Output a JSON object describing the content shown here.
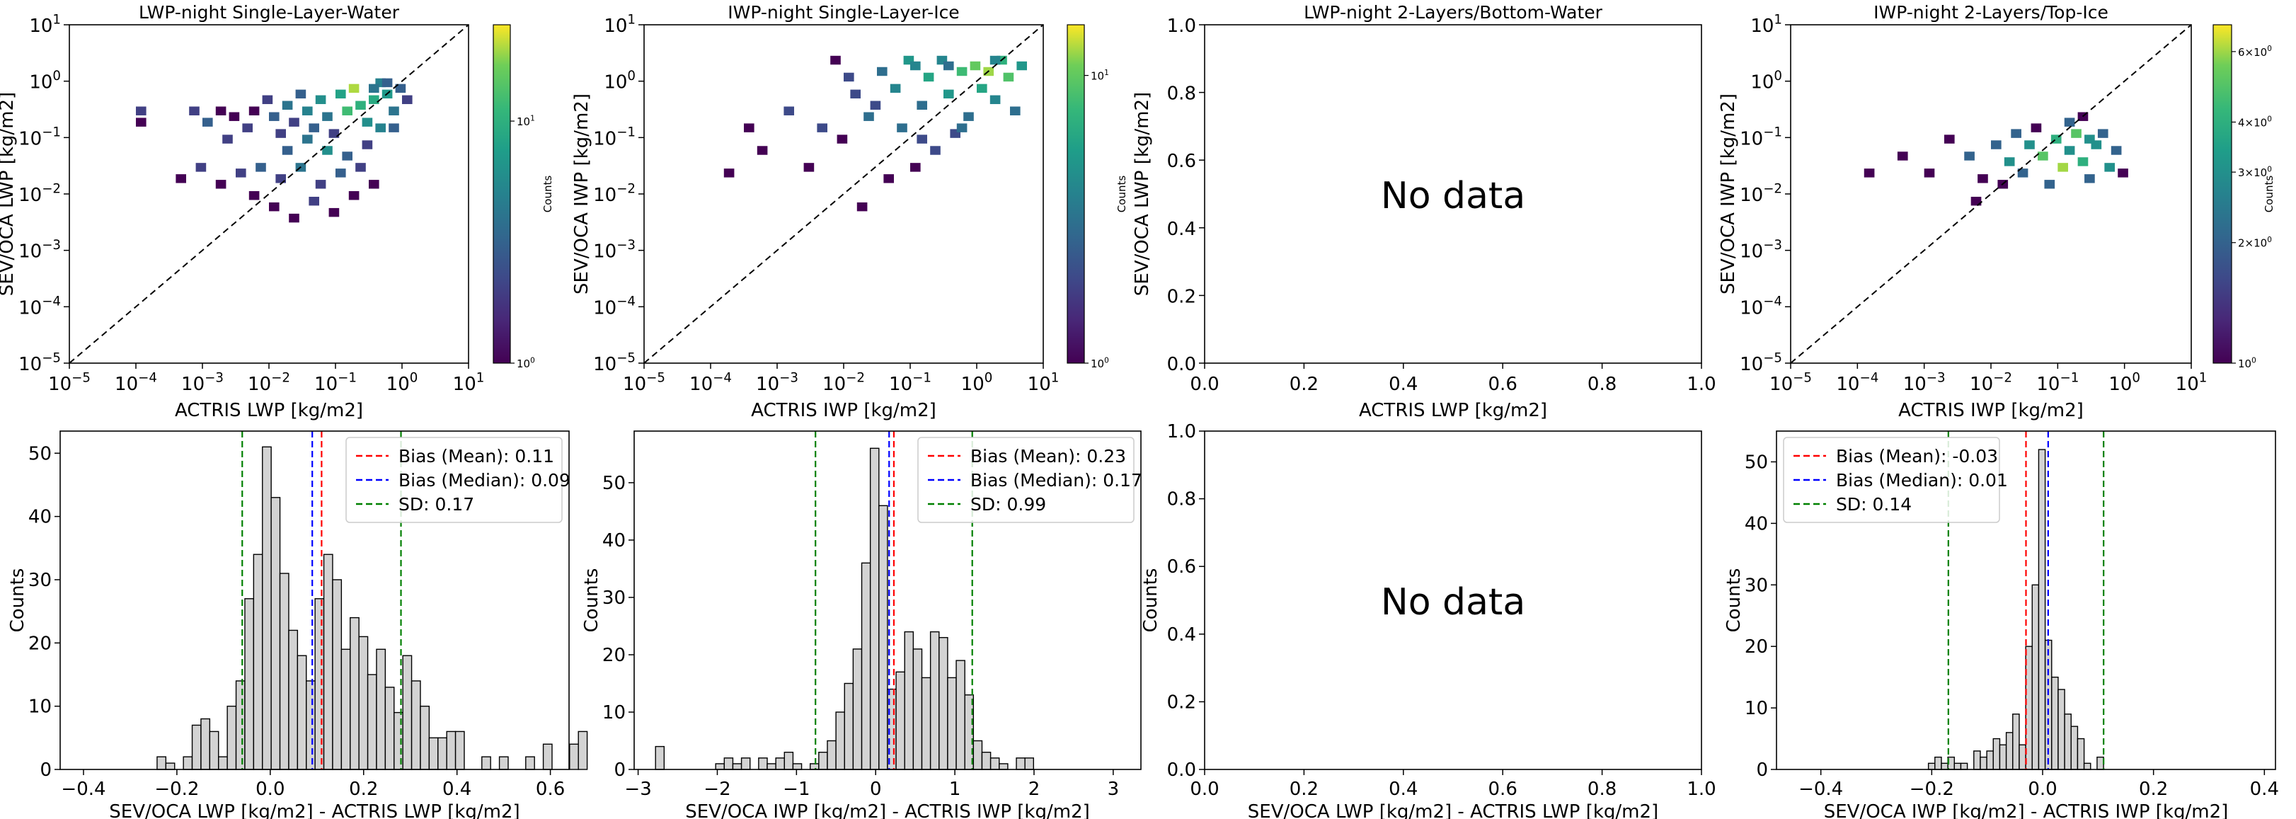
{
  "chart_data": [
    {
      "type": "heatmap",
      "title": "LWP-night Single-Layer-Water",
      "xlabel": "ACTRIS LWP [kg/m2]",
      "ylabel": "SEV/OCA LWP [kg/m2]",
      "xlim": [
        -5,
        1
      ],
      "ylim": [
        -5,
        1
      ],
      "scale": "log",
      "xticks": [
        "10",
        "10",
        "10",
        "10",
        "10",
        "10",
        "10"
      ],
      "xtick_exp": [
        "−5",
        "−4",
        "−3",
        "−2",
        "−1",
        "0",
        "1"
      ],
      "yticks": [
        "10",
        "10",
        "10",
        "10",
        "10",
        "10",
        "10"
      ],
      "ytick_exp": [
        "−5",
        "−4",
        "−3",
        "−2",
        "−1",
        "0",
        "1"
      ],
      "one_to_one_line": true,
      "colorbar": {
        "label": "Counts",
        "scale": "log",
        "ticks": [
          "10",
          "10"
        ],
        "tick_exp": [
          "0",
          "1"
        ],
        "min": 1,
        "max": 25
      },
      "cells": [
        [
          -4.0,
          -0.6,
          2
        ],
        [
          -4.0,
          -0.8,
          1
        ],
        [
          -3.2,
          -0.6,
          2
        ],
        [
          -3.0,
          -0.8,
          3
        ],
        [
          -2.8,
          -0.6,
          1
        ],
        [
          -2.7,
          -1.1,
          2
        ],
        [
          -2.6,
          -0.7,
          1
        ],
        [
          -2.4,
          -0.9,
          2
        ],
        [
          -2.3,
          -0.6,
          1
        ],
        [
          -2.1,
          -0.4,
          2
        ],
        [
          -2.0,
          -0.7,
          3
        ],
        [
          -1.9,
          -1.0,
          2
        ],
        [
          -1.8,
          -0.5,
          4
        ],
        [
          -1.7,
          -0.8,
          2
        ],
        [
          -1.6,
          -0.3,
          3
        ],
        [
          -1.5,
          -0.6,
          5
        ],
        [
          -1.4,
          -0.9,
          3
        ],
        [
          -1.3,
          -0.4,
          6
        ],
        [
          -1.2,
          -0.7,
          4
        ],
        [
          -1.1,
          -1.0,
          2
        ],
        [
          -1.0,
          -0.3,
          8
        ],
        [
          -0.9,
          -0.6,
          12
        ],
        [
          -0.8,
          -0.2,
          20
        ],
        [
          -0.7,
          -0.5,
          10
        ],
        [
          -0.6,
          -0.8,
          6
        ],
        [
          -0.5,
          -0.4,
          9
        ],
        [
          -0.4,
          -0.1,
          5
        ],
        [
          -0.3,
          -0.3,
          7
        ],
        [
          -0.2,
          -0.6,
          4
        ],
        [
          -0.1,
          -0.2,
          3
        ],
        [
          0.0,
          -0.4,
          2
        ],
        [
          -0.3,
          -0.1,
          3
        ],
        [
          -0.5,
          -0.2,
          4
        ],
        [
          -3.4,
          -1.8,
          1
        ],
        [
          -3.1,
          -1.6,
          2
        ],
        [
          -2.8,
          -1.9,
          1
        ],
        [
          -2.5,
          -1.7,
          2
        ],
        [
          -2.2,
          -1.6,
          3
        ],
        [
          -1.9,
          -1.8,
          2
        ],
        [
          -1.6,
          -1.6,
          4
        ],
        [
          -1.3,
          -1.9,
          2
        ],
        [
          -1.0,
          -1.7,
          3
        ],
        [
          -0.7,
          -1.6,
          2
        ],
        [
          -0.5,
          -1.9,
          1
        ],
        [
          -0.9,
          -1.4,
          3
        ],
        [
          -2.0,
          -2.3,
          1
        ],
        [
          -1.7,
          -2.5,
          1
        ],
        [
          -1.4,
          -2.2,
          2
        ],
        [
          -1.1,
          -2.4,
          1
        ],
        [
          -2.3,
          -2.1,
          1
        ],
        [
          -0.8,
          -2.1,
          1
        ],
        [
          -1.8,
          -1.3,
          3
        ],
        [
          -1.5,
          -1.1,
          4
        ],
        [
          -1.2,
          -1.3,
          6
        ],
        [
          -0.6,
          -1.2,
          2
        ],
        [
          -0.4,
          -0.9,
          5
        ],
        [
          -0.2,
          -0.9,
          3
        ]
      ]
    },
    {
      "type": "heatmap",
      "title": "IWP-night Single-Layer-Ice",
      "xlabel": "ACTRIS IWP [kg/m2]",
      "ylabel": "SEV/OCA IWP [kg/m2]",
      "xlim": [
        -5,
        1
      ],
      "ylim": [
        -5,
        1
      ],
      "scale": "log",
      "xticks": [
        "10",
        "10",
        "10",
        "10",
        "10",
        "10",
        "10"
      ],
      "xtick_exp": [
        "−5",
        "−4",
        "−3",
        "−2",
        "−1",
        "0",
        "1"
      ],
      "yticks": [
        "10",
        "10",
        "10",
        "10",
        "10",
        "10",
        "10"
      ],
      "ytick_exp": [
        "−5",
        "−4",
        "−3",
        "−2",
        "−1",
        "0",
        "1"
      ],
      "one_to_one_line": true,
      "colorbar": {
        "label": "Counts",
        "scale": "log",
        "ticks": [
          "10",
          "10"
        ],
        "tick_exp": [
          "0",
          "1"
        ],
        "min": 1,
        "max": 15
      },
      "cells": [
        [
          -3.8,
          -1.7,
          1
        ],
        [
          -3.5,
          -0.9,
          1
        ],
        [
          -3.3,
          -1.3,
          1
        ],
        [
          -2.9,
          -0.6,
          2
        ],
        [
          -2.6,
          -1.6,
          1
        ],
        [
          -2.4,
          -0.9,
          2
        ],
        [
          -2.1,
          -1.1,
          1
        ],
        [
          -1.9,
          -0.3,
          2
        ],
        [
          -1.7,
          -0.7,
          3
        ],
        [
          -1.5,
          0.1,
          3
        ],
        [
          -1.3,
          -0.2,
          4
        ],
        [
          -1.1,
          0.3,
          5
        ],
        [
          -0.9,
          -0.5,
          3
        ],
        [
          -0.8,
          0.0,
          6
        ],
        [
          -0.6,
          0.3,
          4
        ],
        [
          -0.5,
          -0.3,
          5
        ],
        [
          -0.3,
          0.1,
          8
        ],
        [
          -0.2,
          -0.7,
          3
        ],
        [
          -0.1,
          0.2,
          10
        ],
        [
          0.0,
          -0.2,
          6
        ],
        [
          0.1,
          0.1,
          12
        ],
        [
          0.2,
          -0.4,
          4
        ],
        [
          0.3,
          0.3,
          7
        ],
        [
          0.4,
          0.0,
          9
        ],
        [
          -0.4,
          -1.0,
          2
        ],
        [
          -0.7,
          -1.3,
          2
        ],
        [
          -1.0,
          -1.6,
          1
        ],
        [
          -1.4,
          -1.8,
          1
        ],
        [
          -1.8,
          -2.3,
          1
        ],
        [
          -1.2,
          -0.9,
          3
        ],
        [
          -1.6,
          -0.5,
          2
        ],
        [
          0.5,
          -0.6,
          3
        ],
        [
          0.6,
          0.2,
          5
        ],
        [
          0.2,
          0.3,
          4
        ],
        [
          -0.5,
          0.2,
          3
        ],
        [
          -1.0,
          0.2,
          4
        ],
        [
          -2.2,
          0.3,
          1
        ],
        [
          -2.0,
          0.0,
          2
        ],
        [
          -0.9,
          -1.1,
          2
        ],
        [
          -0.3,
          -0.9,
          3
        ]
      ]
    },
    {
      "type": "heatmap",
      "title": "LWP-night 2-Layers/Bottom-Water",
      "xlabel": "ACTRIS LWP [kg/m2]",
      "ylabel": "SEV/OCA LWP [kg/m2]",
      "xlim": [
        0.0,
        1.0
      ],
      "ylim": [
        0.0,
        1.0
      ],
      "xticks": [
        "0.0",
        "0.2",
        "0.4",
        "0.6",
        "0.8",
        "1.0"
      ],
      "yticks": [
        "0.0",
        "0.2",
        "0.4",
        "0.6",
        "0.8",
        "1.0"
      ],
      "annotation": "No data"
    },
    {
      "type": "heatmap",
      "title": "IWP-night 2-Layers/Top-Ice",
      "xlabel": "ACTRIS IWP [kg/m2]",
      "ylabel": "SEV/OCA IWP [kg/m2]",
      "xlim": [
        -5,
        1
      ],
      "ylim": [
        -5,
        1
      ],
      "scale": "log",
      "xticks": [
        "10",
        "10",
        "10",
        "10",
        "10",
        "10",
        "10"
      ],
      "xtick_exp": [
        "−5",
        "−4",
        "−3",
        "−2",
        "−1",
        "0",
        "1"
      ],
      "yticks": [
        "10",
        "10",
        "10",
        "10",
        "10",
        "10",
        "10"
      ],
      "ytick_exp": [
        "−5",
        "−4",
        "−3",
        "−2",
        "−1",
        "0",
        "1"
      ],
      "one_to_one_line": true,
      "colorbar": {
        "label": "Counts",
        "scale": "log",
        "ticks": [
          "10",
          "2×10",
          "3×10",
          "4×10",
          "6×10"
        ],
        "tick_exp": [
          "0",
          "0",
          "0",
          "0",
          "0"
        ],
        "tick_values": [
          1,
          2,
          3,
          4,
          6
        ],
        "min": 1,
        "max": 7
      },
      "cells": [
        [
          -3.9,
          -1.7,
          1
        ],
        [
          -3.4,
          -1.4,
          1
        ],
        [
          -3.0,
          -1.7,
          1
        ],
        [
          -2.7,
          -1.1,
          1
        ],
        [
          -2.4,
          -1.4,
          2
        ],
        [
          -2.2,
          -1.8,
          1
        ],
        [
          -2.0,
          -1.2,
          2
        ],
        [
          -1.8,
          -1.5,
          3
        ],
        [
          -1.6,
          -1.7,
          2
        ],
        [
          -1.5,
          -1.2,
          3
        ],
        [
          -1.3,
          -1.4,
          5
        ],
        [
          -1.2,
          -1.9,
          2
        ],
        [
          -1.1,
          -1.1,
          4
        ],
        [
          -1.0,
          -1.6,
          6
        ],
        [
          -0.9,
          -1.3,
          3
        ],
        [
          -0.8,
          -1.0,
          5
        ],
        [
          -0.7,
          -1.5,
          4
        ],
        [
          -0.6,
          -1.8,
          2
        ],
        [
          -0.5,
          -1.2,
          3
        ],
        [
          -0.4,
          -1.0,
          2
        ],
        [
          -0.3,
          -1.6,
          3
        ],
        [
          -0.2,
          -1.3,
          2
        ],
        [
          -0.1,
          -1.7,
          1
        ],
        [
          -2.3,
          -2.2,
          1
        ],
        [
          -1.7,
          -1.0,
          2
        ],
        [
          -1.4,
          -0.9,
          1
        ],
        [
          -0.9,
          -0.8,
          2
        ],
        [
          -0.7,
          -0.7,
          1
        ],
        [
          -0.6,
          -1.1,
          3
        ],
        [
          -1.9,
          -1.9,
          1
        ]
      ]
    },
    {
      "type": "bar",
      "xlabel": "SEV/OCA LWP [kg/m2] - ACTRIS LWP [kg/m2]",
      "ylabel": "Counts",
      "xlim": [
        -0.45,
        0.64
      ],
      "ylim": [
        0,
        53.5
      ],
      "xticks": [
        "−0.4",
        "−0.2",
        "0.0",
        "0.2",
        "0.4",
        "0.6"
      ],
      "xtick_values": [
        -0.4,
        -0.2,
        0.0,
        0.2,
        0.4,
        0.6
      ],
      "yticks": [
        "0",
        "10",
        "20",
        "30",
        "40",
        "50"
      ],
      "ytick_values": [
        0,
        10,
        20,
        30,
        40,
        50
      ],
      "bin_start": -0.28,
      "bin_width": 0.0188,
      "values": [
        0,
        0,
        2,
        1,
        0,
        2,
        7,
        8,
        6,
        2,
        10,
        14,
        27,
        34,
        51,
        43,
        31,
        22,
        18,
        14,
        27,
        34,
        30,
        19,
        24,
        21,
        15,
        19,
        13,
        9,
        18,
        14,
        10,
        5,
        5,
        6,
        6,
        0,
        0,
        2,
        0,
        2,
        0,
        0,
        2,
        0,
        4,
        0,
        0,
        4,
        6
      ],
      "lines": [
        {
          "label": "Bias (Mean): 0.11",
          "value": 0.11,
          "color": "#ff0000"
        },
        {
          "label": "Bias (Median): 0.09",
          "value": 0.09,
          "color": "#0000ff"
        },
        {
          "label": "SD: 0.17",
          "value": -0.06,
          "color": "#008000"
        },
        {
          "value": 0.28,
          "color": "#008000"
        }
      ],
      "legend": "top-right"
    },
    {
      "type": "bar",
      "xlabel": "SEV/OCA IWP [kg/m2] - ACTRIS IWP [kg/m2]",
      "ylabel": "Counts",
      "xlim": [
        -3.05,
        3.35
      ],
      "ylim": [
        0,
        59
      ],
      "xticks": [
        "−3",
        "−2",
        "−1",
        "0",
        "1",
        "2",
        "3"
      ],
      "xtick_values": [
        -3,
        -2,
        -1,
        0,
        1,
        2,
        3
      ],
      "yticks": [
        "0",
        "10",
        "20",
        "30",
        "40",
        "50"
      ],
      "ytick_values": [
        0,
        10,
        20,
        30,
        40,
        50
      ],
      "bin_start": -2.78,
      "bin_width": 0.1085,
      "values": [
        4,
        0,
        0,
        0,
        0,
        0,
        0,
        1,
        2,
        1,
        2,
        0,
        2,
        1,
        2,
        3,
        1,
        0,
        1,
        3,
        5,
        10,
        15,
        21,
        36,
        56,
        46,
        14,
        17,
        24,
        21,
        16,
        24,
        23,
        16,
        19,
        13,
        5,
        3,
        2,
        1,
        0,
        2,
        2,
        0,
        0,
        0,
        0,
        0,
        0,
        0
      ],
      "lines": [
        {
          "label": "Bias (Mean): 0.23",
          "value": 0.23,
          "color": "#ff0000"
        },
        {
          "label": "Bias (Median): 0.17",
          "value": 0.17,
          "color": "#0000ff"
        },
        {
          "label": "SD: 0.99",
          "value": -0.76,
          "color": "#008000"
        },
        {
          "value": 1.22,
          "color": "#008000"
        }
      ],
      "legend": "top-right"
    },
    {
      "type": "bar",
      "xlabel": "SEV/OCA LWP [kg/m2] - ACTRIS LWP [kg/m2]",
      "ylabel": "Counts",
      "xlim": [
        0.0,
        1.0
      ],
      "ylim": [
        0.0,
        1.0
      ],
      "xticks": [
        "0.0",
        "0.2",
        "0.4",
        "0.6",
        "0.8",
        "1.0"
      ],
      "xtick_values": [
        0.0,
        0.2,
        0.4,
        0.6,
        0.8,
        1.0
      ],
      "yticks": [
        "0.0",
        "0.2",
        "0.4",
        "0.6",
        "0.8",
        "1.0"
      ],
      "ytick_values": [
        0.0,
        0.2,
        0.4,
        0.6,
        0.8,
        1.0
      ],
      "annotation": "No data"
    },
    {
      "type": "bar",
      "xlabel": "SEV/OCA IWP [kg/m2] - ACTRIS IWP [kg/m2]",
      "ylabel": "Counts",
      "xlim": [
        -0.48,
        0.42
      ],
      "ylim": [
        0,
        55
      ],
      "xticks": [
        "−0.4",
        "−0.2",
        "0.0",
        "0.2",
        "0.4"
      ],
      "xtick_values": [
        -0.4,
        -0.2,
        0.0,
        0.2,
        0.4
      ],
      "yticks": [
        "0",
        "10",
        "20",
        "30",
        "40",
        "50"
      ],
      "ytick_values": [
        0,
        10,
        20,
        30,
        40,
        50
      ],
      "bin_start": -0.44,
      "bin_width": 0.0117,
      "values": [
        0,
        0,
        0,
        0,
        0,
        0,
        0,
        0,
        0,
        0,
        0,
        0,
        0,
        0,
        0,
        0,
        0,
        0,
        0,
        0,
        1,
        2,
        1,
        2,
        1,
        1,
        0,
        3,
        2,
        3,
        5,
        4,
        6,
        9,
        4,
        20,
        30,
        52,
        21,
        15,
        13,
        9,
        7,
        5,
        1,
        0,
        2,
        0,
        0,
        0,
        0
      ],
      "lines": [
        {
          "label": "Bias (Mean): -0.03",
          "value": -0.03,
          "color": "#ff0000"
        },
        {
          "label": "Bias (Median): 0.01",
          "value": 0.01,
          "color": "#0000ff"
        },
        {
          "label": "SD: 0.14",
          "value": -0.17,
          "color": "#008000"
        },
        {
          "value": 0.11,
          "color": "#008000"
        }
      ],
      "legend": "top-left"
    }
  ]
}
